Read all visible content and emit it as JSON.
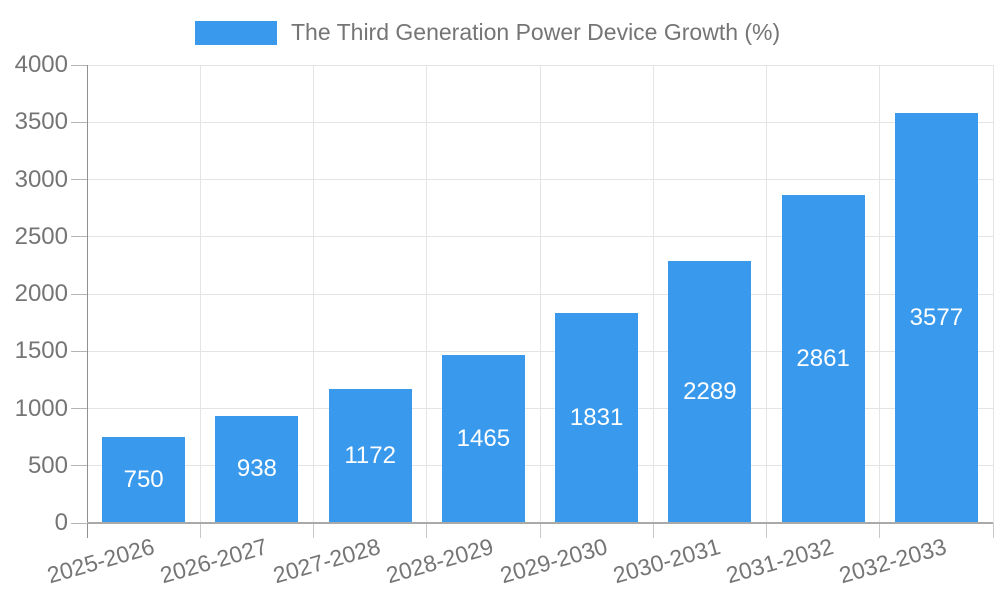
{
  "legend": {
    "label": "The Third Generation Power Device Growth (%)"
  },
  "chart_data": {
    "type": "bar",
    "title": "The Third Generation Power Device Growth (%)",
    "categories": [
      "2025-2026",
      "2026-2027",
      "2027-2028",
      "2028-2029",
      "2029-2030",
      "2030-2031",
      "2031-2032",
      "2032-2033"
    ],
    "values": [
      750,
      938,
      1172,
      1465,
      1831,
      2289,
      2861,
      3577
    ],
    "value_labels": [
      "750",
      "938",
      "1172",
      "1465",
      "1831",
      "2289",
      "2861",
      "3577"
    ],
    "xlabel": "",
    "ylabel": "",
    "ylim": [
      0,
      4000
    ],
    "ytick_step": 500,
    "ytick_labels": [
      "0",
      "500",
      "1000",
      "1500",
      "2000",
      "2500",
      "3000",
      "3500",
      "4000"
    ],
    "grid": true,
    "legend_position": "top",
    "bar_color": "#3999EC",
    "value_label_color": "#FFFFFF",
    "axis_text_color": "#757575"
  }
}
